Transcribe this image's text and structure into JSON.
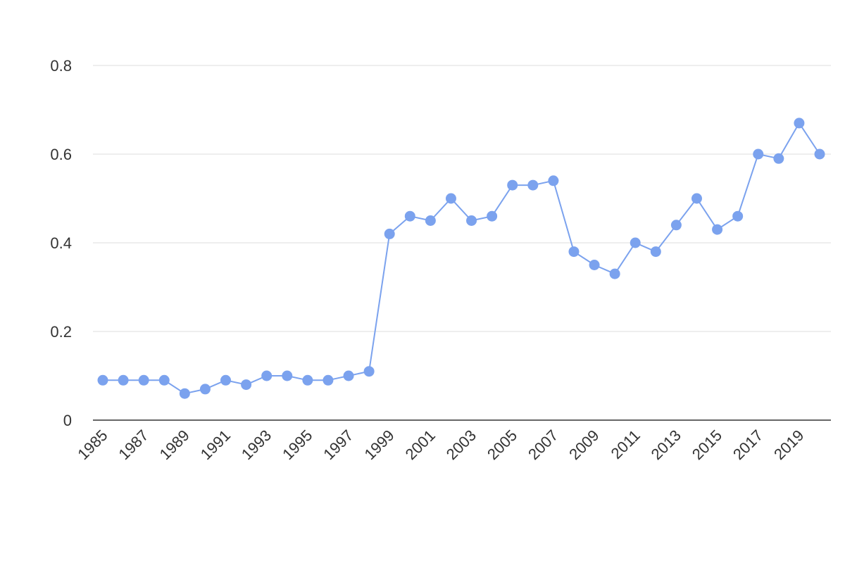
{
  "chart_data": {
    "type": "line",
    "title": "",
    "xlabel": "",
    "ylabel": "",
    "x": [
      1985,
      1986,
      1987,
      1988,
      1989,
      1990,
      1991,
      1992,
      1993,
      1994,
      1995,
      1996,
      1997,
      1998,
      1999,
      2000,
      2001,
      2002,
      2003,
      2004,
      2005,
      2006,
      2007,
      2008,
      2009,
      2010,
      2011,
      2012,
      2013,
      2014,
      2015,
      2016,
      2017,
      2018,
      2019,
      2020
    ],
    "series": [
      {
        "values": [
          0.09,
          0.09,
          0.09,
          0.09,
          0.06,
          0.07,
          0.09,
          0.08,
          0.1,
          0.1,
          0.09,
          0.09,
          0.1,
          0.11,
          0.42,
          0.46,
          0.45,
          0.5,
          0.45,
          0.46,
          0.53,
          0.53,
          0.54,
          0.38,
          0.35,
          0.33,
          0.4,
          0.38,
          0.44,
          0.5,
          0.43,
          0.46,
          0.6,
          0.59,
          0.67,
          0.6
        ]
      }
    ],
    "ylim": [
      0,
      0.8
    ],
    "y_ticks": [
      "0",
      "0.2",
      "0.4",
      "0.6",
      "0.8"
    ],
    "x_tick_labels": [
      "1985",
      "1987",
      "1989",
      "1991",
      "1993",
      "1995",
      "1997",
      "1999",
      "2001",
      "2003",
      "2005",
      "2007",
      "2009",
      "2011",
      "2013",
      "2015",
      "2017",
      "2019"
    ],
    "grid": true,
    "legend": "none",
    "colors": {
      "line": "#7ba2ee",
      "marker": "#7ba2ee",
      "grid": "#dddddd",
      "axis": "#333333"
    }
  }
}
